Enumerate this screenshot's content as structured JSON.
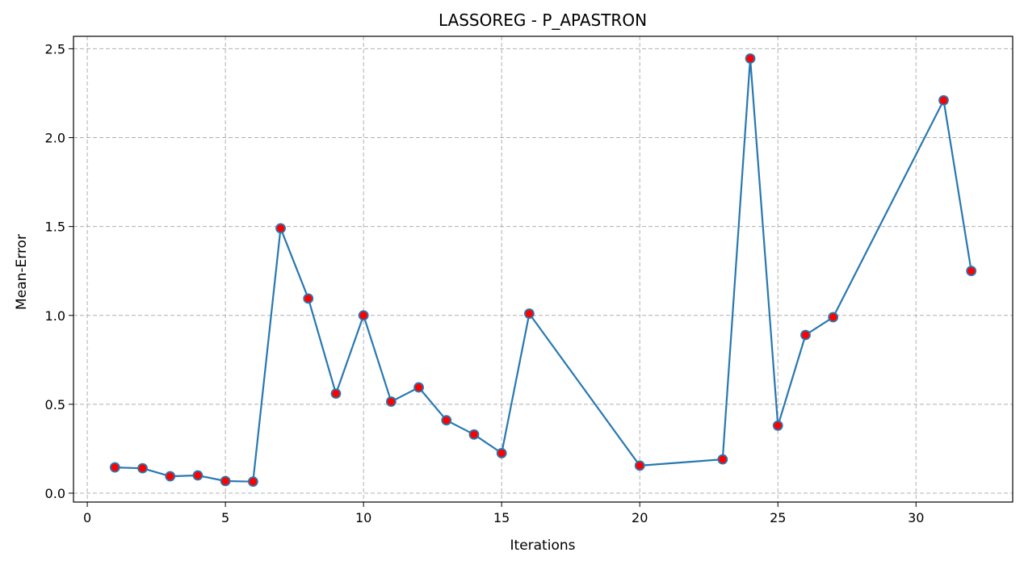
{
  "chart_data": {
    "type": "line",
    "title": "LASSOREG - P_APASTRON",
    "xlabel": "Iterations",
    "ylabel": "Mean-Error",
    "xlim": [
      -0.5,
      33.5
    ],
    "ylim": [
      -0.05,
      2.57
    ],
    "xticks": [
      0,
      5,
      10,
      15,
      20,
      25,
      30
    ],
    "yticks": [
      0.0,
      0.5,
      1.0,
      1.5,
      2.0,
      2.5
    ],
    "xtick_labels": [
      "0",
      "5",
      "10",
      "15",
      "20",
      "25",
      "30"
    ],
    "ytick_labels": [
      "0.0",
      "0.5",
      "1.0",
      "1.5",
      "2.0",
      "2.5"
    ],
    "grid": true,
    "line_color": "#2878b0",
    "marker_face_color": "#ff0000",
    "marker_edge_color": "#2878b0",
    "series": [
      {
        "x": [
          1,
          2,
          3,
          4,
          5,
          6,
          7,
          8,
          9,
          10,
          11,
          12,
          13,
          14,
          15,
          16,
          20,
          23,
          24,
          25,
          26,
          27,
          31,
          32
        ],
        "y": [
          0.145,
          0.14,
          0.095,
          0.1,
          0.068,
          0.065,
          1.49,
          1.095,
          0.56,
          1.0,
          0.515,
          0.595,
          0.41,
          0.33,
          0.225,
          1.01,
          0.155,
          0.19,
          2.445,
          0.38,
          0.89,
          0.99,
          2.21,
          1.25
        ]
      }
    ]
  }
}
